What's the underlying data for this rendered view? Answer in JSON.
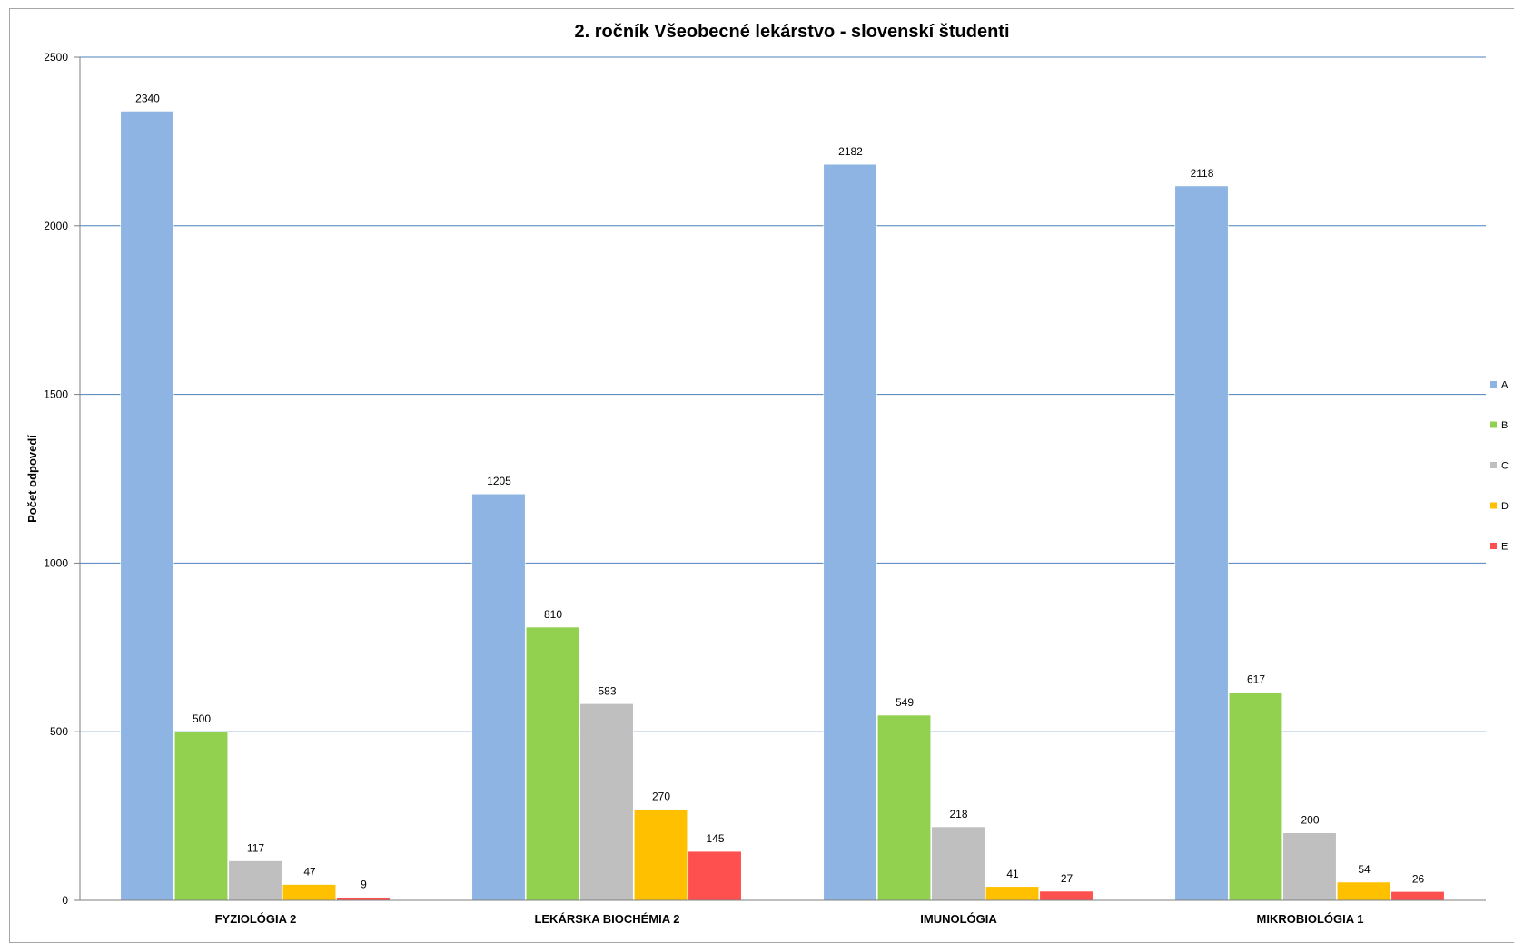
{
  "chart_data": {
    "type": "bar",
    "title": "2. ročník Všeobecné lekárstvo - slovenskí študenti",
    "xlabel": "",
    "ylabel": "Počet odpovedí",
    "ylim": [
      0,
      2500
    ],
    "yticks": [
      0,
      500,
      1000,
      1500,
      2000,
      2500
    ],
    "grid": true,
    "legend_position": "right",
    "categories": [
      "FYZIOLÓGIA 2",
      "LEKÁRSKA BIOCHÉMIA 2",
      "IMUNOLÓGIA",
      "MIKROBIOLÓGIA 1"
    ],
    "series": [
      {
        "name": "A",
        "color": "#8eb4e3",
        "values": [
          2340,
          1205,
          2182,
          2118
        ]
      },
      {
        "name": "B",
        "color": "#92d050",
        "values": [
          500,
          810,
          549,
          617
        ]
      },
      {
        "name": "C",
        "color": "#bfbfbf",
        "values": [
          117,
          583,
          218,
          200
        ]
      },
      {
        "name": "D",
        "color": "#ffc000",
        "values": [
          47,
          270,
          41,
          54
        ]
      },
      {
        "name": "E",
        "color": "#ff5050",
        "values": [
          9,
          145,
          27,
          26
        ]
      }
    ],
    "colors": {
      "gridline": "#4f81bd",
      "axis": "#7f7f7f"
    }
  }
}
